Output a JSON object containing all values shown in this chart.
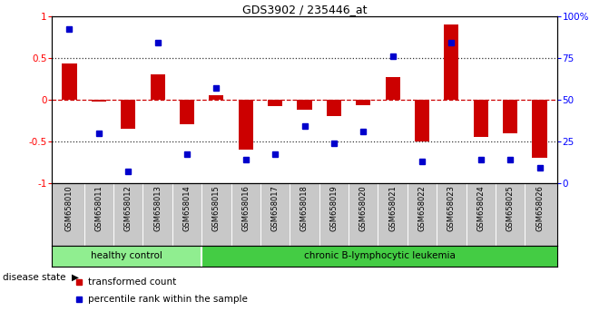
{
  "title": "GDS3902 / 235446_at",
  "samples": [
    "GSM658010",
    "GSM658011",
    "GSM658012",
    "GSM658013",
    "GSM658014",
    "GSM658015",
    "GSM658016",
    "GSM658017",
    "GSM658018",
    "GSM658019",
    "GSM658020",
    "GSM658021",
    "GSM658022",
    "GSM658023",
    "GSM658024",
    "GSM658025",
    "GSM658026"
  ],
  "n_healthy": 5,
  "red_bars": [
    0.43,
    -0.02,
    -0.35,
    0.3,
    -0.3,
    0.05,
    -0.6,
    -0.08,
    -0.12,
    -0.2,
    -0.07,
    0.27,
    -0.5,
    0.9,
    -0.45,
    -0.4,
    -0.7
  ],
  "blue_dots_pct": [
    92,
    30,
    7,
    84,
    17,
    57,
    14,
    17,
    34,
    24,
    31,
    76,
    13,
    84,
    14,
    14,
    9
  ],
  "bar_color": "#CC0000",
  "dot_color": "#0000CC",
  "ylim_left": [
    -1.0,
    1.0
  ],
  "yticks_left": [
    -1.0,
    -0.5,
    0.0,
    0.5,
    1.0
  ],
  "ytick_labels_left": [
    "-1",
    "-0.5",
    "0",
    "0.5",
    "1"
  ],
  "ytick_labels_right": [
    "0",
    "25",
    "50",
    "75",
    "100%"
  ],
  "hlines": [
    0.5,
    0.0,
    -0.5
  ],
  "hline_styles": [
    "dotted",
    "dashed",
    "dotted"
  ],
  "hline_colors": [
    "#333333",
    "#CC0000",
    "#333333"
  ],
  "group_healthy_label": "healthy control",
  "group_disease_label": "chronic B-lymphocytic leukemia",
  "group_healthy_color": "#90EE90",
  "group_disease_color": "#44CC44",
  "label_area_bg": "#C8C8C8",
  "legend_items": [
    {
      "color": "#CC0000",
      "label": "transformed count"
    },
    {
      "color": "#0000CC",
      "label": "percentile rank within the sample"
    }
  ],
  "bg_color": "#FFFFFF"
}
